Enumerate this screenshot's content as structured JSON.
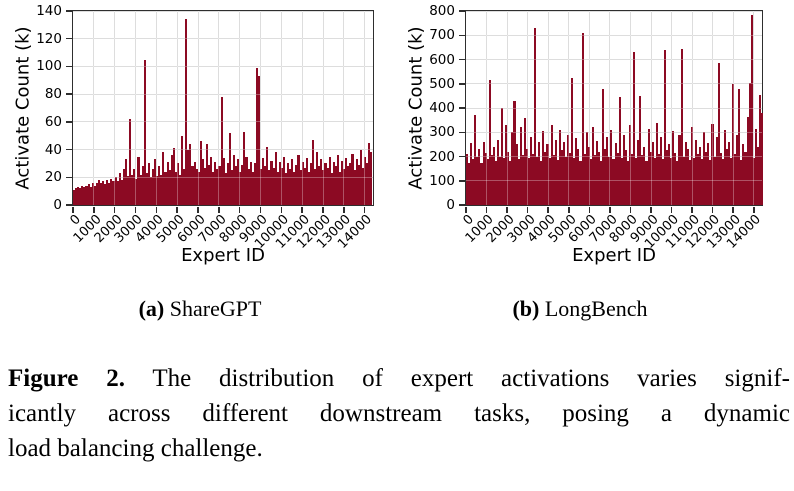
{
  "figure": {
    "subcaption_a": {
      "tag": "(a)",
      "text": "ShareGPT"
    },
    "subcaption_b": {
      "tag": "(b)",
      "text": "LongBench"
    },
    "caption": {
      "label": "Figure 2.",
      "line1_rest": "The distribution of expert activations varies signif-",
      "line2": "icantly across different downstream tasks, posing a dynamic",
      "line3": "load balancing challenge."
    }
  },
  "style": {
    "bar_color": "#8C0A23",
    "grid_color": "#cfcfcf",
    "spine_color": "#2e2e2e",
    "background": "#ffffff"
  },
  "chart_data": [
    {
      "id": "a",
      "type": "bar",
      "subfigure": "(a) ShareGPT",
      "xlabel": "Expert ID",
      "ylabel": "Activate Count (k)",
      "xlim": [
        0,
        14400
      ],
      "ylim": [
        0,
        140
      ],
      "xticks": [
        0,
        1000,
        2000,
        3000,
        4000,
        5000,
        6000,
        7000,
        8000,
        9000,
        10000,
        11000,
        12000,
        13000,
        14000
      ],
      "yticks": [
        0,
        20,
        40,
        60,
        80,
        100,
        120,
        140
      ],
      "grid": true,
      "expert_id_bins": {
        "start": 0,
        "step": 100,
        "count": 144
      },
      "values": [
        11,
        12,
        13,
        12,
        14,
        13,
        14,
        15,
        13,
        16,
        14,
        16,
        18,
        16,
        17,
        15,
        18,
        16,
        19,
        17,
        20,
        17,
        23,
        18,
        26,
        33,
        21,
        62,
        22,
        26,
        19,
        35,
        22,
        28,
        105,
        23,
        30,
        20,
        26,
        33,
        21,
        28,
        22,
        38,
        24,
        31,
        25,
        36,
        41,
        24,
        30,
        22,
        50,
        26,
        134,
        40,
        44,
        28,
        31,
        26,
        24,
        46,
        33,
        27,
        44,
        29,
        35,
        24,
        31,
        26,
        28,
        78,
        34,
        23,
        30,
        52,
        25,
        36,
        28,
        33,
        24,
        29,
        53,
        35,
        26,
        31,
        24,
        30,
        99,
        93,
        26,
        34,
        28,
        42,
        25,
        32,
        27,
        38,
        24,
        31,
        27,
        35,
        23,
        30,
        26,
        33,
        24,
        29,
        36,
        25,
        31,
        27,
        34,
        24,
        30,
        47,
        26,
        38,
        28,
        33,
        25,
        30,
        27,
        35,
        23,
        31,
        28,
        36,
        24,
        32,
        26,
        34,
        28,
        30,
        37,
        25,
        33,
        29,
        40,
        27,
        35,
        30,
        45,
        38
      ]
    },
    {
      "id": "b",
      "type": "bar",
      "subfigure": "(b) LongBench",
      "xlabel": "Expert ID",
      "ylabel": "Activate Count (k)",
      "xlim": [
        0,
        14400
      ],
      "ylim": [
        0,
        800
      ],
      "xticks": [
        0,
        1000,
        2000,
        3000,
        4000,
        5000,
        6000,
        7000,
        8000,
        9000,
        10000,
        11000,
        12000,
        13000,
        14000
      ],
      "yticks": [
        0,
        100,
        200,
        300,
        400,
        500,
        600,
        700,
        800
      ],
      "grid": true,
      "expert_id_bins": {
        "start": 0,
        "step": 100,
        "count": 144
      },
      "values": [
        210,
        175,
        255,
        190,
        370,
        200,
        230,
        175,
        260,
        215,
        190,
        515,
        205,
        240,
        180,
        270,
        200,
        400,
        195,
        330,
        220,
        180,
        300,
        430,
        250,
        190,
        320,
        205,
        360,
        230,
        195,
        280,
        210,
        730,
        200,
        260,
        180,
        305,
        220,
        250,
        195,
        330,
        205,
        270,
        185,
        310,
        225,
        260,
        200,
        290,
        215,
        525,
        195,
        275,
        230,
        180,
        710,
        210,
        300,
        240,
        190,
        320,
        205,
        265,
        220,
        180,
        480,
        230,
        280,
        200,
        310,
        190,
        255,
        215,
        445,
        195,
        290,
        225,
        180,
        330,
        210,
        630,
        195,
        270,
        450,
        205,
        240,
        180,
        315,
        220,
        260,
        195,
        340,
        210,
        280,
        190,
        640,
        225,
        250,
        195,
        305,
        215,
        180,
        290,
        645,
        200,
        260,
        230,
        185,
        320,
        195,
        270,
        210,
        240,
        190,
        300,
        220,
        255,
        185,
        335,
        200,
        280,
        585,
        215,
        190,
        310,
        230,
        260,
        195,
        500,
        210,
        290,
        480,
        185,
        250,
        220,
        365,
        505,
        785,
        195,
        315,
        240,
        455,
        380
      ]
    }
  ]
}
